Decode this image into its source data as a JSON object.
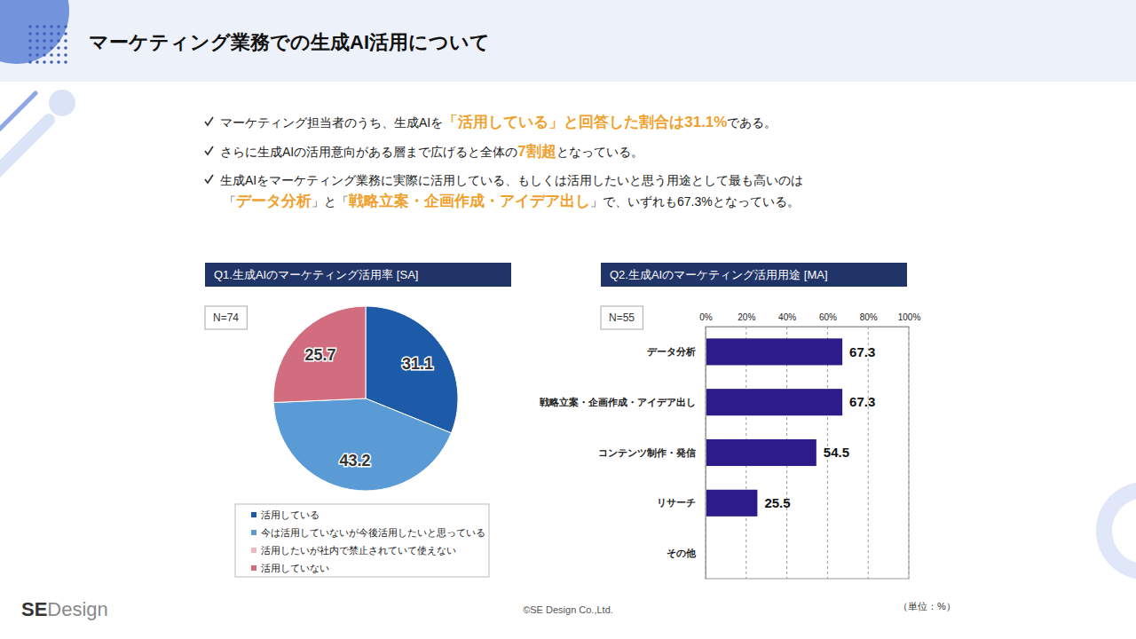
{
  "header": {
    "title": "マーケティング業務での生成AI活用について"
  },
  "bullets": [
    [
      [
        "マーケティング担当者のうち、生成AIを",
        "「活用している」と回答した割合は31.1%",
        "である。"
      ]
    ],
    [
      [
        "さらに生成AIの活用意向がある層まで広げると全体の",
        "7割超",
        "となっている。"
      ]
    ],
    [
      [
        "生成AIをマーケティング業務に実際に活用している、もしくは活用したいと思う用途として最も高いのは"
      ],
      [
        "「",
        "データ分析",
        "」と「",
        "戦略立案・企画作成・アイデア出し",
        "」で、いずれも67.3%となっている。"
      ]
    ]
  ],
  "chart_data": [
    {
      "type": "pie",
      "title": "Q1.生成AIのマーケティング活用率 [SA]",
      "annotation": "N=74",
      "categories": [
        "活用している",
        "今は活用していないが今後活用したいと思っている",
        "活用したいが社内で禁止されていて使えない",
        "活用していない"
      ],
      "values": [
        31.1,
        43.2,
        0,
        25.7
      ],
      "value_labels": [
        "31.1",
        "43.2",
        null,
        "25.7"
      ],
      "colors": [
        "#1d5ba8",
        "#5b9bd5",
        "#f2b8c2",
        "#d16d7e"
      ],
      "data_labels": true,
      "legend": "bottom"
    },
    {
      "type": "bar",
      "title": "Q2.生成AIのマーケティング活用用途 [MA]",
      "annotation": "N=55",
      "orientation": "horizontal",
      "categories": [
        "データ分析",
        "戦略立案・企画作成・アイデア出し",
        "コンテンツ制作・発信",
        "リサーチ",
        "その他"
      ],
      "values": [
        67.3,
        67.3,
        54.5,
        25.5,
        0
      ],
      "value_labels": [
        "67.3",
        "67.3",
        "54.5",
        "25.5",
        null
      ],
      "color": "#2e1b8a",
      "xlim": [
        0,
        100
      ],
      "xticks": [
        {
          "value": 0,
          "label": "0%"
        },
        {
          "value": 20,
          "label": "20%"
        },
        {
          "value": 40,
          "label": "40%"
        },
        {
          "value": 60,
          "label": "60%"
        },
        {
          "value": 80,
          "label": "80%"
        },
        {
          "value": 100,
          "label": "100%"
        }
      ],
      "grid": true,
      "data_labels": true
    }
  ],
  "footer": {
    "copyright": "©SE Design Co.,Ltd.",
    "unit_note": "（単位：%）",
    "logo": [
      "SE",
      "Design"
    ]
  }
}
